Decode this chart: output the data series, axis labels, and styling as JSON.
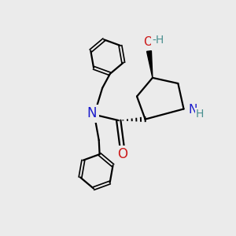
{
  "bg_color": "#ebebeb",
  "atom_colors": {
    "N": "#1a1acc",
    "O": "#cc1a1a",
    "C": "#000000",
    "H": "#4a9090"
  },
  "bond_color": "#000000",
  "bond_width": 1.6,
  "fig_size": [
    3.0,
    3.0
  ],
  "dpi": 100
}
